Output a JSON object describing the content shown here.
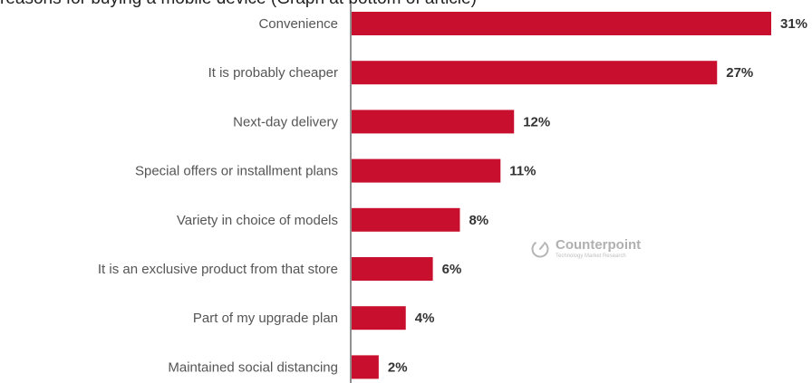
{
  "title": "reasons for buying a mobile device (Graph at bottom of article)",
  "watermark": {
    "brand": "Counterpoint",
    "tagline": "Technology Market Research",
    "icon": "counterpoint-logo-icon"
  },
  "colors": {
    "bar": "#c8102e",
    "axis": "#222222",
    "label": "#555555",
    "value": "#333333"
  },
  "chart_data": {
    "type": "bar",
    "orientation": "horizontal",
    "categories": [
      "Convenience",
      "It is probably cheaper",
      "Next-day delivery",
      "Special offers or installment plans",
      "Variety in choice of models",
      "It is an exclusive product from that store",
      "Part of my upgrade plan",
      "Maintained social distancing"
    ],
    "values": [
      31,
      27,
      12,
      11,
      8,
      6,
      4,
      2
    ],
    "value_labels": [
      "31%",
      "27%",
      "12%",
      "11%",
      "8%",
      "6%",
      "4%",
      "2%"
    ],
    "unit": "%",
    "xlim": [
      0,
      31
    ],
    "grid": false,
    "legend": "none"
  }
}
